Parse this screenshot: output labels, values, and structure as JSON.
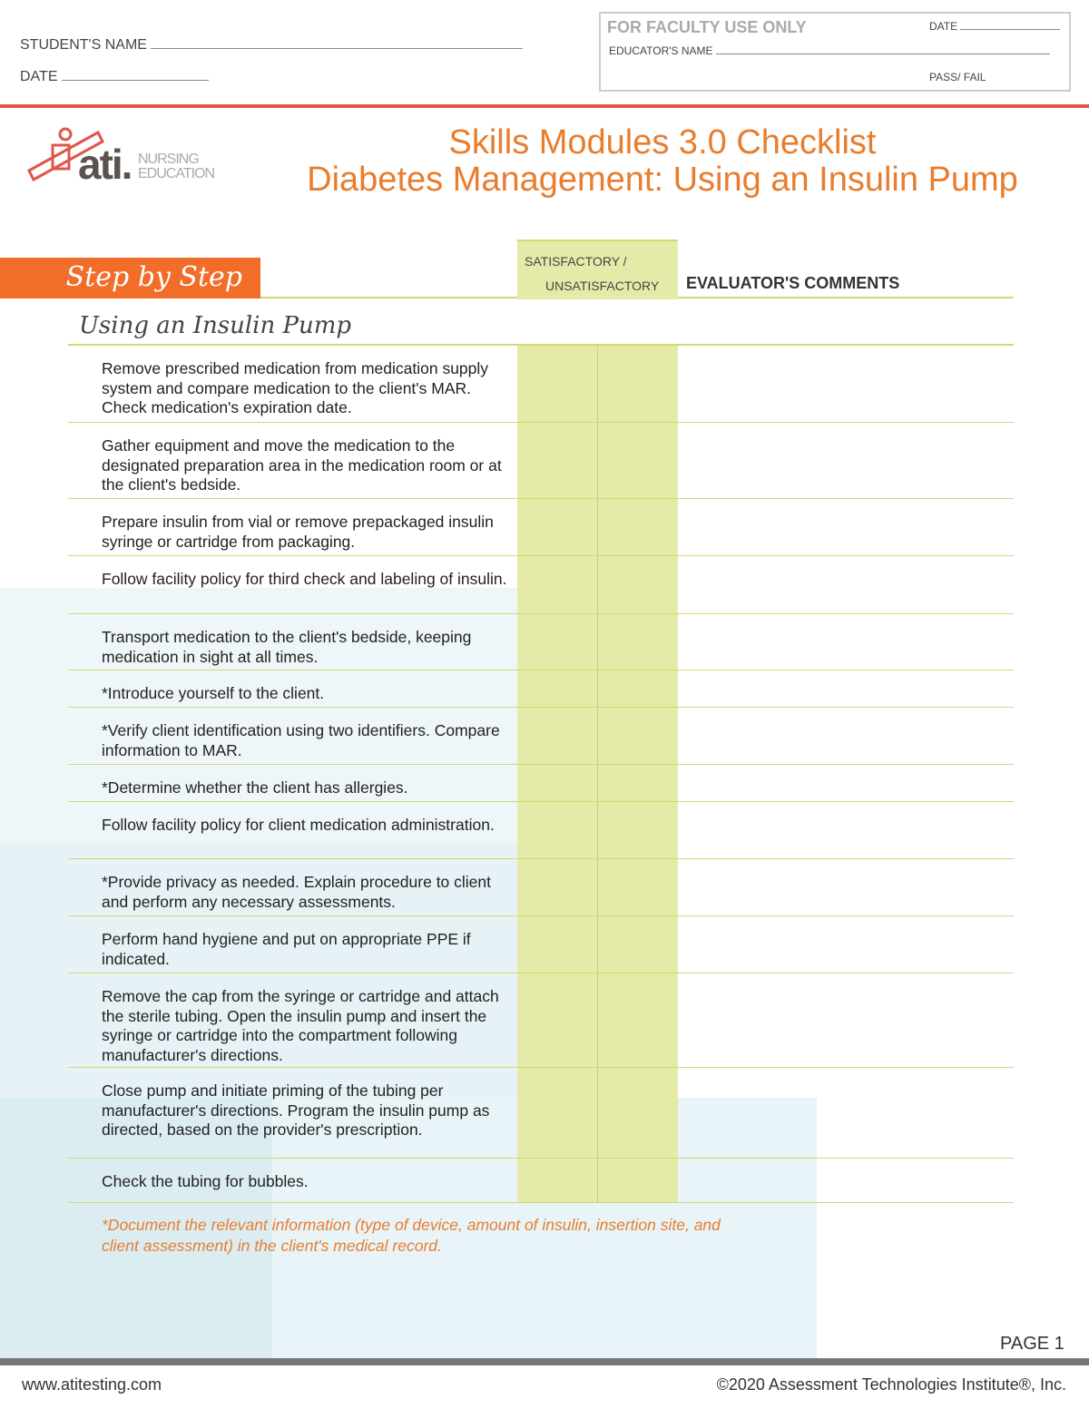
{
  "header": {
    "student_name_label": "STUDENT'S NAME",
    "date_label": "DATE",
    "faculty": {
      "title": "FOR FACULTY USE ONLY",
      "date_label": "DATE",
      "educator_label": "EDUCATOR'S NAME",
      "pass_fail_label": "PASS/ FAIL"
    }
  },
  "logo": {
    "brand": "ati.",
    "line1": "NURSING",
    "line2": "EDUCATION"
  },
  "title": {
    "line1": "Skills Modules 3.0 Checklist",
    "line2": "Diabetes Management: Using an Insulin Pump"
  },
  "table": {
    "section_tab": "Step by Step",
    "col_sat_1": "SATISFACTORY /",
    "col_sat_2": "UNSATISFACTORY",
    "col_comments": "EVALUATOR'S COMMENTS",
    "section_title": "Using an Insulin Pump",
    "steps": [
      "Remove prescribed medication from medication supply system and compare medication to the client's MAR. Check medication's expiration date.",
      "Gather equipment and move the medication to the designated preparation area in the medication room or at the client's bedside.",
      "Prepare insulin from vial or remove prepackaged insulin syringe or cartridge from packaging.",
      "Follow facility policy for third check and labeling of insulin.",
      "Transport medication to the client's bedside, keeping medication in sight at all times.",
      "*Introduce yourself to the client.",
      "*Verify client identification using two identifiers. Compare information to MAR.",
      "*Determine whether the client has allergies.",
      "Follow facility policy for client medication administration.",
      "*Provide privacy as needed. Explain procedure to client and perform any necessary assessments.",
      "Perform hand hygiene and put on appropriate PPE if indicated.",
      "Remove the cap from the syringe or cartridge and attach the sterile tubing. Open the insulin pump and insert the syringe or cartridge into the compartment following manufacturer's directions.",
      "Close pump and initiate priming of the tubing per manufacturer's directions. Program the insulin pump as directed, based on the provider's prescription.",
      "Check the tubing for bubbles."
    ],
    "note": "*Document the relevant information (type of device, amount of insulin, insertion site, and client assessment) in the client's medical record."
  },
  "page": "PAGE 1",
  "footer": {
    "url": "www.atitesting.com",
    "copyright": "©2020 Assessment Technologies Institute®, Inc."
  },
  "colors": {
    "accent": "#e87d2e",
    "tab": "#f26d2a",
    "green": "#e5eaa8",
    "rule": "#e0564a"
  }
}
